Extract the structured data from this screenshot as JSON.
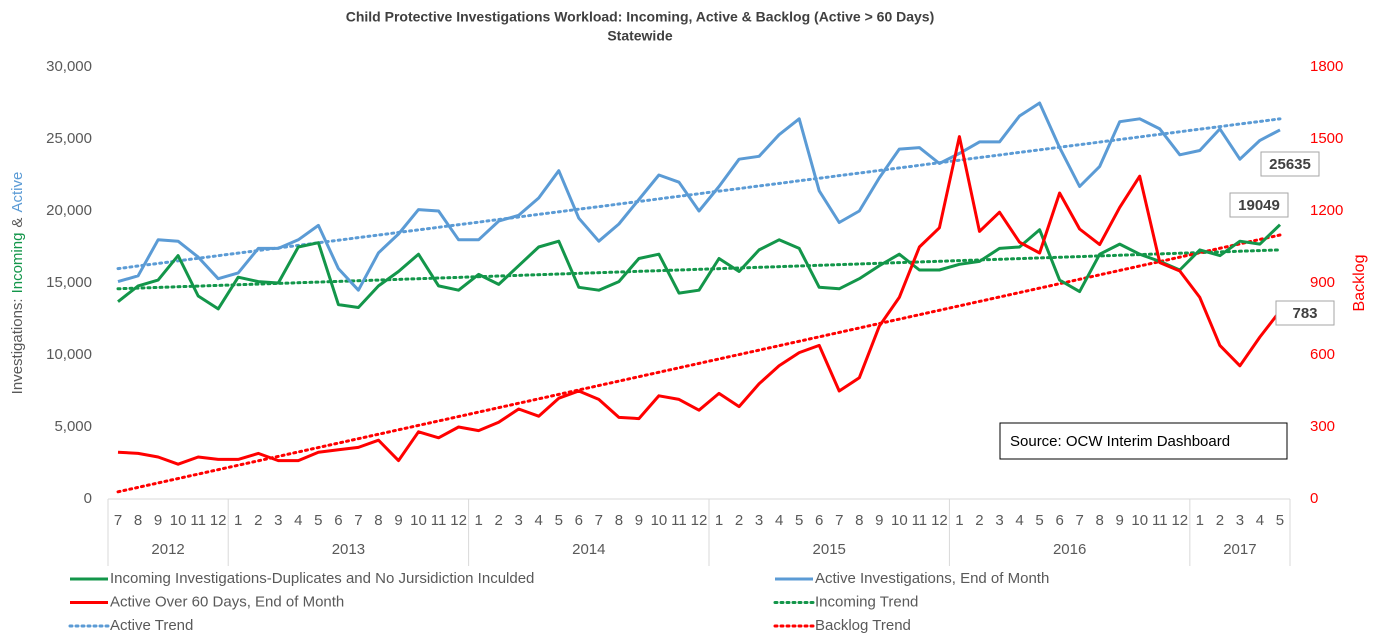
{
  "chart_data": {
    "type": "line",
    "title": "Child Protective Investigations Workload: Incoming, Active & Backlog (Active > 60 Days)",
    "subtitle": "Statewide",
    "ylabel_parts": [
      {
        "text": "Investigations:",
        "color": "#595959"
      },
      {
        "text": "Incoming",
        "color": "#13964a"
      },
      {
        "text": "&",
        "color": "#595959"
      },
      {
        "text": "Active",
        "color": "#5b9bd5"
      }
    ],
    "y2label": "Backlog",
    "y2label_color": "#ff0000",
    "annotation": "Source: OCW Interim Dashboard",
    "categories": [
      "7",
      "8",
      "9",
      "10",
      "11",
      "12",
      "1",
      "2",
      "3",
      "4",
      "5",
      "6",
      "7",
      "8",
      "9",
      "10",
      "11",
      "12",
      "1",
      "2",
      "3",
      "4",
      "5",
      "6",
      "7",
      "8",
      "9",
      "10",
      "11",
      "12",
      "1",
      "2",
      "3",
      "4",
      "5",
      "6",
      "7",
      "8",
      "9",
      "10",
      "11",
      "12",
      "1",
      "2",
      "3",
      "4",
      "5",
      "6",
      "7",
      "8",
      "9",
      "10",
      "11",
      "12",
      "1",
      "2",
      "3",
      "4",
      "5"
    ],
    "groups": [
      {
        "label": "2012",
        "span": 6
      },
      {
        "label": "2013",
        "span": 12
      },
      {
        "label": "2014",
        "span": 12
      },
      {
        "label": "2015",
        "span": 12
      },
      {
        "label": "2016",
        "span": 12
      },
      {
        "label": "2017",
        "span": 5
      }
    ],
    "ylim": [
      0,
      30000
    ],
    "yticks": [
      0,
      {
        "value": 5000,
        "label": "5,000"
      },
      {
        "value": 10000,
        "label": "10,000"
      },
      {
        "value": 15000,
        "label": "15,000"
      },
      {
        "value": 20000,
        "label": "20,000"
      },
      {
        "value": 25000,
        "label": "25,000"
      },
      {
        "value": 30000,
        "label": "30,000"
      }
    ],
    "y2lim": [
      0,
      1800
    ],
    "y2ticks": [
      0,
      300,
      600,
      900,
      1200,
      1500,
      1800
    ],
    "series": [
      {
        "name": "Incoming Investigations-Duplicates and No Jursidiction Inculded",
        "color": "#13964a",
        "values": [
          13700,
          14800,
          15200,
          16900,
          14100,
          13200,
          15400,
          15100,
          15000,
          17500,
          17800,
          13500,
          13300,
          14800,
          15800,
          17000,
          14800,
          14500,
          15600,
          14900,
          16200,
          17500,
          17900,
          14700,
          14500,
          15100,
          16700,
          17000,
          14300,
          14500,
          16700,
          15800,
          17300,
          18000,
          17400,
          14700,
          14600,
          15300,
          16200,
          17000,
          15900,
          15900,
          16300,
          16500,
          17400,
          17500,
          18700,
          15200,
          14400,
          17000,
          17700,
          17000,
          16500,
          15900,
          17300,
          16900,
          17900,
          17700,
          19049
        ]
      },
      {
        "name": "Active Investigations, End of Month",
        "color": "#5b9bd5",
        "values": [
          15100,
          15500,
          18000,
          17900,
          16800,
          15300,
          15700,
          17400,
          17400,
          18000,
          19000,
          16000,
          14500,
          17100,
          18400,
          20100,
          20000,
          18000,
          18000,
          19300,
          19700,
          20900,
          22800,
          19500,
          17900,
          19100,
          20800,
          22500,
          22000,
          20000,
          21700,
          23600,
          23800,
          25300,
          26400,
          21400,
          19200,
          20000,
          22300,
          24300,
          24400,
          23300,
          24000,
          24800,
          24800,
          26600,
          27500,
          24400,
          21700,
          23100,
          26200,
          26400,
          25700,
          23900,
          24200,
          25700,
          23600,
          24900,
          25635
        ]
      },
      {
        "name": "Active Over 60 Days, End of Month",
        "color": "#ff0000",
        "axis": "y2",
        "values": [
          195,
          190,
          175,
          145,
          175,
          165,
          165,
          190,
          160,
          160,
          195,
          205,
          215,
          245,
          160,
          280,
          255,
          300,
          285,
          320,
          375,
          345,
          420,
          450,
          415,
          340,
          335,
          430,
          415,
          370,
          440,
          385,
          480,
          555,
          610,
          640,
          450,
          505,
          720,
          840,
          1050,
          1130,
          1510,
          1115,
          1195,
          1070,
          1025,
          1275,
          1125,
          1060,
          1215,
          1345,
          985,
          950,
          840,
          640,
          555,
          675,
          783
        ]
      }
    ],
    "trends": [
      {
        "name": "Incoming Trend",
        "color": "#13964a",
        "start": 14600,
        "end": 17300
      },
      {
        "name": "Active Trend",
        "color": "#5b9bd5",
        "start": 16000,
        "end": 26400
      },
      {
        "name": "Backlog Trend",
        "color": "#ff0000",
        "axis": "y2",
        "start": 30,
        "end": 1100
      }
    ]
  }
}
